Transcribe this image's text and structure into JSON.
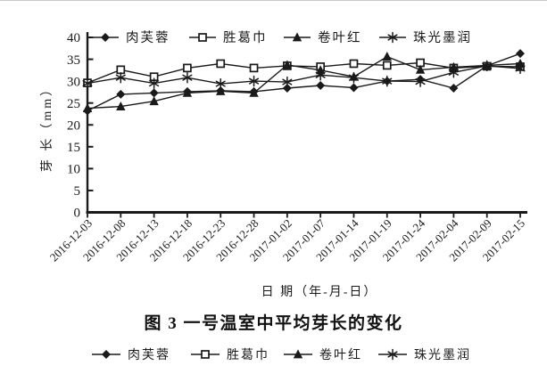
{
  "caption": "图 3  一号温室中平均芽长的变化",
  "chart_data": {
    "type": "line",
    "title": "",
    "xlabel": "日 期（年-月-日）",
    "ylabel": "芽 长（mm）",
    "ylim": [
      0,
      40
    ],
    "ytick_step": 5,
    "grid": false,
    "legend_positions": [
      "top-inside",
      "below-caption"
    ],
    "line_color": "#1a1a1a",
    "background": "#ffffff",
    "categories": [
      "2016-12-03",
      "2016-12-08",
      "2016-12-13",
      "2016-12-18",
      "2016-12-23",
      "2016-12-28",
      "2017-01-02",
      "2017-01-07",
      "2017-01-14",
      "2017-01-19",
      "2017-01-24",
      "2017-02-04",
      "2017-02-09",
      "2017-02-15"
    ],
    "series": [
      {
        "name": "肉芙蓉",
        "marker": "diamond",
        "color": "#1a1a1a",
        "values": [
          23.2,
          27.0,
          27.3,
          27.6,
          27.8,
          27.6,
          28.4,
          29.0,
          28.5,
          30.0,
          30.4,
          28.4,
          33.5,
          36.3
        ]
      },
      {
        "name": "胜葛巾",
        "marker": "open-square",
        "color": "#1a1a1a",
        "values": [
          29.6,
          32.6,
          31.0,
          33.0,
          34.0,
          33.0,
          33.5,
          33.3,
          34.0,
          33.6,
          34.2,
          33.0,
          33.4,
          33.3
        ]
      },
      {
        "name": "卷叶红",
        "marker": "triangle",
        "color": "#1a1a1a",
        "values": [
          23.8,
          24.2,
          25.4,
          27.3,
          27.7,
          27.3,
          33.7,
          32.5,
          31.0,
          35.6,
          32.6,
          33.2,
          33.6,
          34.0
        ]
      },
      {
        "name": "珠光墨润",
        "marker": "asterisk",
        "color": "#1a1a1a",
        "values": [
          29.5,
          30.8,
          29.5,
          30.8,
          29.4,
          30.0,
          29.8,
          31.4,
          30.8,
          30.0,
          29.9,
          32.0,
          33.5,
          32.9
        ]
      }
    ]
  }
}
